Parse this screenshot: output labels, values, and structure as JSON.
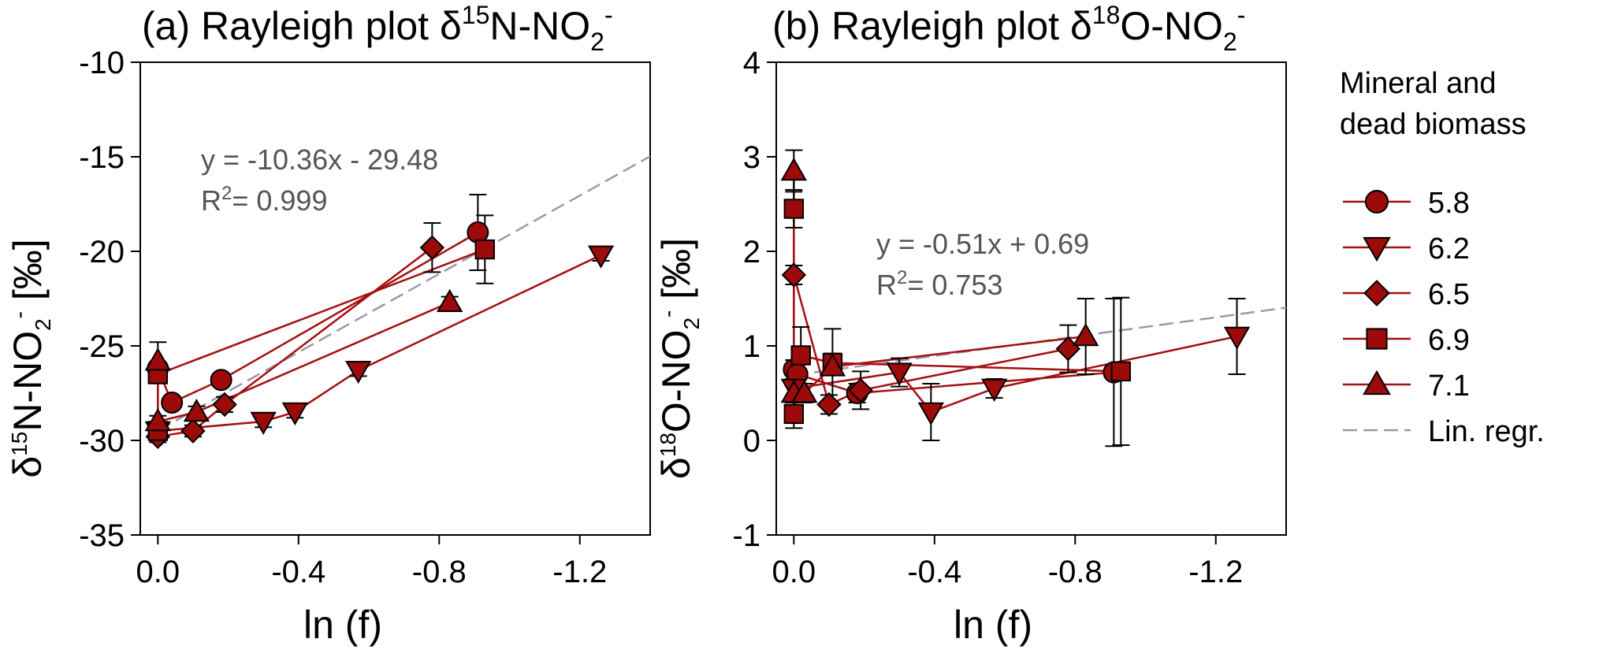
{
  "chart_data": [
    {
      "type": "scatter",
      "title": {
        "prefix": "(a) Rayleigh plot δ",
        "sup": "15",
        "mid": "N-NO",
        "sub": "2",
        "sup2": "-"
      },
      "xlabel": "ln (f)",
      "ylabel": {
        "prefix": "δ",
        "sup": "15",
        "mid": "N-NO",
        "sub": "2",
        "sup2": "-",
        "unit": " [‰]"
      },
      "xlim": [
        0.05,
        -1.4
      ],
      "ylim": [
        -35,
        -10
      ],
      "xticks": [
        0,
        -0.4,
        -0.8,
        -1.2
      ],
      "xtick_labels": [
        "0.0",
        "-0.4",
        "-0.8",
        "-1.2"
      ],
      "yticks": [
        -35,
        -30,
        -25,
        -20,
        -15,
        -10
      ],
      "ytick_labels": [
        "-35",
        "-30",
        "-25",
        "-20",
        "-15",
        "-10"
      ],
      "regression": {
        "slope": -10.36,
        "intercept": -29.48,
        "eq": "y = -10.36x - 29.48",
        "r2": "= 0.999",
        "r2_prefix": "R",
        "r2_sup": "2"
      },
      "series": [
        {
          "name": "5.8",
          "marker": "circle",
          "x": [
            0,
            -0.04,
            -0.18,
            -0.91
          ],
          "y": [
            -26.2,
            -28.0,
            -26.8,
            -19.0
          ],
          "err": [
            0.3,
            0.3,
            0.3,
            2.0
          ]
        },
        {
          "name": "6.2",
          "marker": "tri-down",
          "x": [
            0,
            -0.3,
            -0.39,
            -0.57,
            -1.26
          ],
          "y": [
            -29.5,
            -29.0,
            -28.5,
            -26.3,
            -20.2
          ],
          "err": [
            0.3,
            0.3,
            0.3,
            0.3,
            0.3
          ]
        },
        {
          "name": "6.5",
          "marker": "diamond",
          "x": [
            0,
            -0.1,
            -0.19,
            -0.78
          ],
          "y": [
            -29.8,
            -29.5,
            -28.1,
            -19.8
          ],
          "err": [
            0.3,
            0.3,
            0.4,
            1.3
          ]
        },
        {
          "name": "6.9",
          "marker": "square",
          "x": [
            0,
            0,
            -0.93
          ],
          "y": [
            -29.5,
            -26.5,
            -19.9
          ],
          "err": [
            0.3,
            0.3,
            1.8
          ]
        },
        {
          "name": "7.1",
          "marker": "tri-up",
          "x": [
            0,
            0,
            -0.11,
            -0.83
          ],
          "y": [
            -25.8,
            -29.0,
            -28.5,
            -22.7
          ],
          "err": [
            1.0,
            0.3,
            0.3,
            0.3
          ]
        }
      ]
    },
    {
      "type": "scatter",
      "title": {
        "prefix": "(b) Rayleigh plot δ",
        "sup": "18",
        "mid": "O-NO",
        "sub": "2",
        "sup2": "-"
      },
      "xlabel": "ln (f)",
      "ylabel": {
        "prefix": "δ",
        "sup": "18",
        "mid": "O-NO",
        "sub": "2",
        "sup2": "-",
        "unit": " [‰]"
      },
      "xlim": [
        0.05,
        -1.4
      ],
      "ylim": [
        -1,
        4
      ],
      "xticks": [
        0,
        -0.4,
        -0.8,
        -1.2
      ],
      "xtick_labels": [
        "0.0",
        "-0.4",
        "-0.8",
        "-1.2"
      ],
      "yticks": [
        -1,
        0,
        1,
        2,
        3,
        4
      ],
      "ytick_labels": [
        "-1",
        "0",
        "1",
        "2",
        "3",
        "4"
      ],
      "regression": {
        "slope": -0.51,
        "intercept": 0.69,
        "eq": "y = -0.51x + 0.69",
        "r2": "= 0.753",
        "r2_prefix": "R",
        "r2_sup": "2"
      },
      "series": [
        {
          "name": "5.8",
          "marker": "circle",
          "x": [
            0,
            -0.01,
            -0.18,
            -0.91
          ],
          "y": [
            0.75,
            0.7,
            0.5,
            0.72
          ],
          "err": [
            0.1,
            0.1,
            0.1,
            0.78
          ]
        },
        {
          "name": "6.2",
          "marker": "tri-down",
          "x": [
            0,
            -0.3,
            -0.39,
            -0.57,
            -1.26
          ],
          "y": [
            0.55,
            0.72,
            0.3,
            0.55,
            1.1
          ],
          "err": [
            0.1,
            0.15,
            0.3,
            0.1,
            0.4
          ]
        },
        {
          "name": "6.5",
          "marker": "diamond",
          "x": [
            0,
            -0.1,
            -0.19,
            -0.78
          ],
          "y": [
            1.75,
            0.38,
            0.53,
            0.97
          ],
          "err": [
            0.1,
            0.1,
            0.2,
            0.25
          ]
        },
        {
          "name": "6.9",
          "marker": "square",
          "x": [
            0,
            0,
            -0.02,
            -0.11,
            -0.93
          ],
          "y": [
            2.45,
            0.28,
            0.9,
            0.82,
            0.73
          ],
          "err": [
            0.2,
            0.15,
            0.3,
            0.1,
            0.78
          ]
        },
        {
          "name": "7.1",
          "marker": "tri-up",
          "x": [
            0,
            0,
            -0.03,
            -0.11,
            -0.83
          ],
          "y": [
            2.85,
            0.5,
            0.5,
            0.78,
            1.1
          ],
          "err": [
            0.22,
            0.1,
            0.1,
            0.4,
            0.4
          ]
        }
      ]
    }
  ],
  "legend": {
    "title_line1": "Mineral and",
    "title_line2": "dead biomass",
    "items": [
      "5.8",
      "6.2",
      "6.5",
      "6.9",
      "7.1"
    ],
    "regression_label": "Lin. regr."
  },
  "colors": {
    "marker_fill": "#9c0a0a",
    "series_line": "#a50f0f",
    "regression_line": "#9a9aa8",
    "annotation": "#555555"
  }
}
